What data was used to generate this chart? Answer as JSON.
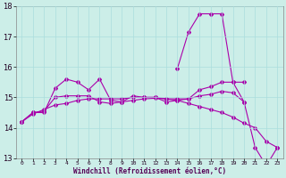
{
  "xlabel": "Windchill (Refroidissement éolien,°C)",
  "background_color": "#cceee8",
  "grid_color": "#aadddd",
  "line_color": "#aa00aa",
  "x_hours": [
    0,
    1,
    2,
    3,
    4,
    5,
    6,
    7,
    8,
    9,
    10,
    11,
    12,
    13,
    14,
    15,
    16,
    17,
    18,
    19,
    20,
    21,
    22,
    23
  ],
  "series_peak": [
    14.2,
    null,
    null,
    null,
    null,
    null,
    null,
    null,
    null,
    null,
    null,
    null,
    null,
    null,
    15.95,
    17.15,
    17.75,
    17.75,
    17.75,
    null,
    null,
    null,
    null,
    null
  ],
  "series_jagged": [
    14.2,
    14.5,
    14.5,
    15.3,
    15.6,
    15.5,
    15.25,
    15.6,
    14.9,
    14.85,
    15.05,
    15.0,
    15.0,
    14.85,
    14.9,
    14.95,
    15.25,
    15.35,
    15.5,
    15.5,
    15.5,
    null,
    null,
    null
  ],
  "series_flat": [
    14.2,
    14.5,
    14.55,
    15.0,
    15.05,
    15.05,
    15.05,
    14.85,
    14.8,
    14.85,
    14.9,
    14.95,
    14.97,
    14.95,
    14.95,
    14.95,
    15.05,
    15.1,
    15.2,
    15.15,
    14.85,
    null,
    null,
    null
  ],
  "series_decline": [
    14.2,
    14.45,
    14.6,
    14.75,
    14.8,
    14.9,
    14.95,
    14.95,
    14.95,
    14.95,
    15.0,
    15.0,
    15.0,
    14.95,
    14.9,
    14.8,
    14.7,
    14.6,
    14.5,
    14.35,
    14.15,
    14.0,
    13.55,
    13.35
  ],
  "series_drop": [
    14.2,
    null,
    null,
    null,
    null,
    null,
    null,
    null,
    null,
    null,
    null,
    null,
    null,
    null,
    15.95,
    17.15,
    17.75,
    17.75,
    17.75,
    15.5,
    14.85,
    13.35,
    12.75,
    13.35
  ],
  "ylim": [
    13.0,
    18.0
  ],
  "yticks": [
    13,
    14,
    15,
    16,
    17,
    18
  ]
}
